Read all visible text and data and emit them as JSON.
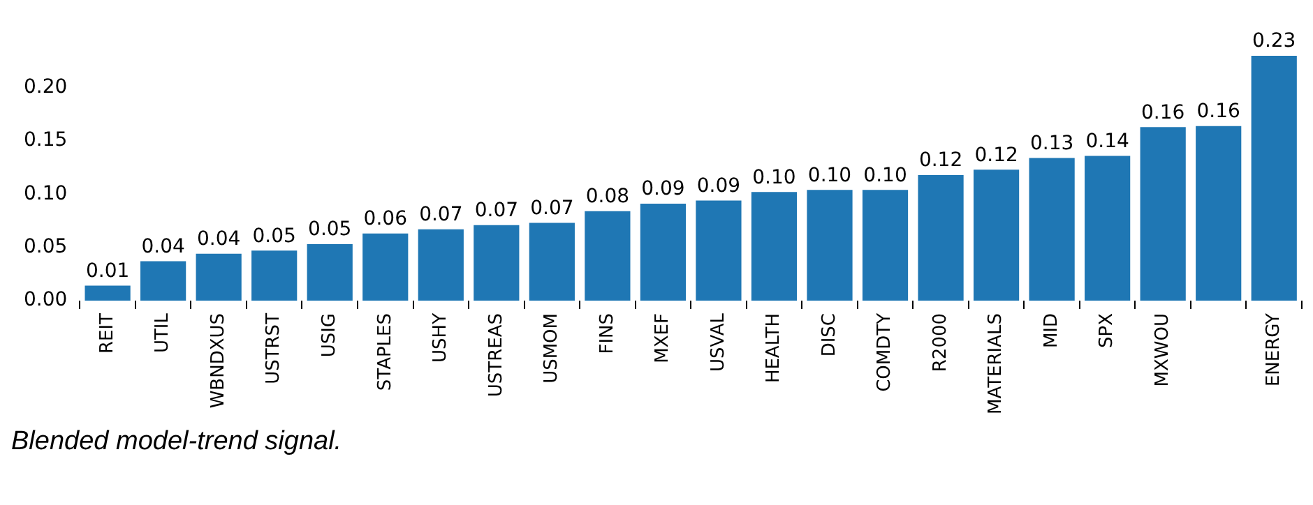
{
  "chart_data": {
    "type": "bar",
    "categories": [
      "REIT",
      "UTIL",
      "WBNDXUS",
      "USTRST",
      "USIG",
      "STAPLES",
      "USHY",
      "USTREAS",
      "USMOM",
      "FINS",
      "MXEF",
      "USVAL",
      "HEALTH",
      "DISC",
      "COMDTY",
      "R2000",
      "MATERIALS",
      "MID",
      "SPX",
      "MXWOU",
      null,
      "ENERGY"
    ],
    "values": [
      0.014,
      0.037,
      0.044,
      0.047,
      0.053,
      0.063,
      0.067,
      0.071,
      0.073,
      0.084,
      0.091,
      0.094,
      0.102,
      0.104,
      0.104,
      0.118,
      0.123,
      0.134,
      0.136,
      0.163,
      0.164,
      0.23
    ],
    "value_labels": [
      "0.01",
      "0.04",
      "0.04",
      "0.05",
      "0.05",
      "0.06",
      "0.07",
      "0.07",
      "0.07",
      "0.08",
      "0.09",
      "0.09",
      "0.10",
      "0.10",
      "0.10",
      "0.12",
      "0.12",
      "0.13",
      "0.14",
      "0.16",
      "0.16",
      "0.23"
    ],
    "color": "#1f77b4",
    "ylim": [
      0,
      0.23
    ],
    "yticks": [
      {
        "value": 0,
        "label": "0.00"
      },
      {
        "value": 0.05,
        "label": "0.05"
      },
      {
        "value": 0.1,
        "label": "0.10"
      },
      {
        "value": 0.15,
        "label": "0.15"
      },
      {
        "value": 0.2,
        "label": "0.20"
      }
    ],
    "grid": false,
    "legend": false,
    "annotations": [
      "Blended model-trend signal."
    ]
  }
}
